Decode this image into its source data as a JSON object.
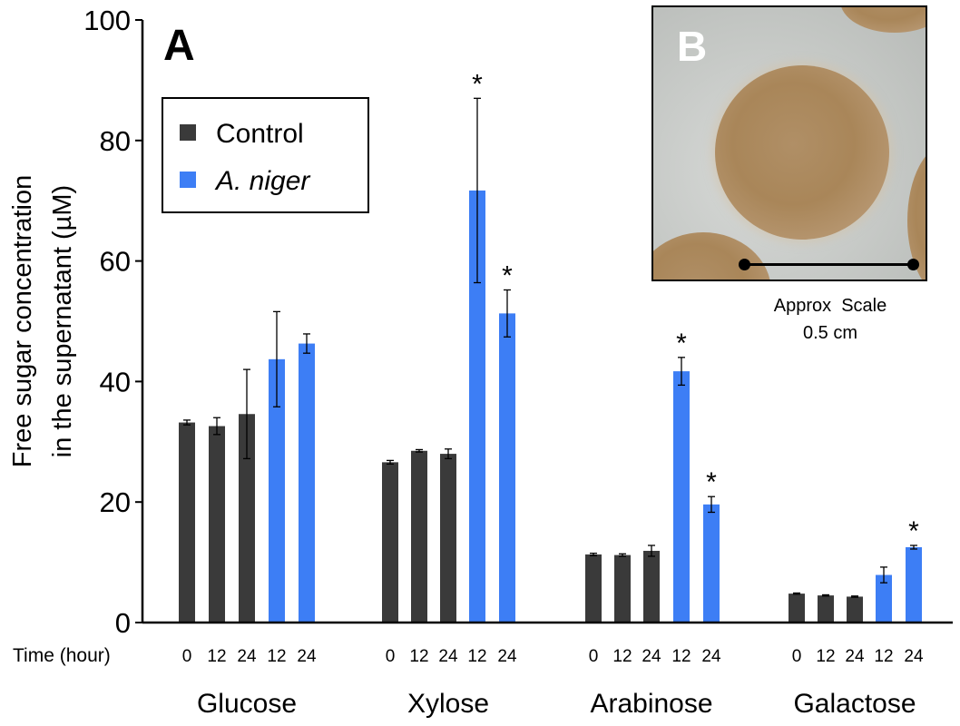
{
  "panel_a_label": "A",
  "panel_b_label": "B",
  "panel_b_scale": {
    "label": "Approx  Scale",
    "value": "0.5 cm"
  },
  "colors": {
    "control": "#3a3a3a",
    "a_niger": "#3d7ef5"
  },
  "chart_data": {
    "type": "bar",
    "title": "",
    "ylabel_line1": "Free sugar concentration",
    "ylabel_line2": "in the supernatant (µM)",
    "ylim": [
      0,
      100
    ],
    "yticks": [
      0,
      20,
      40,
      60,
      80,
      100
    ],
    "xaxis_prefix": "Time (hour)",
    "legend": {
      "position": "top-left",
      "entries": [
        {
          "name": "Control",
          "color": "#3a3a3a",
          "italic": false
        },
        {
          "name": "A. niger",
          "color": "#3d7ef5",
          "italic": true
        }
      ]
    },
    "groups": [
      {
        "name": "Glucose",
        "bars": [
          {
            "time": "0",
            "series": "Control",
            "value": 33.2,
            "error": 0.4,
            "sig": false
          },
          {
            "time": "12",
            "series": "Control",
            "value": 32.6,
            "error": 1.4,
            "sig": false
          },
          {
            "time": "24",
            "series": "Control",
            "value": 34.6,
            "error": 7.4,
            "sig": false
          },
          {
            "time": "12",
            "series": "A. niger",
            "value": 43.7,
            "error": 7.9,
            "sig": false
          },
          {
            "time": "24",
            "series": "A. niger",
            "value": 46.3,
            "error": 1.6,
            "sig": false
          }
        ]
      },
      {
        "name": "Xylose",
        "bars": [
          {
            "time": "0",
            "series": "Control",
            "value": 26.6,
            "error": 0.3,
            "sig": false
          },
          {
            "time": "12",
            "series": "Control",
            "value": 28.5,
            "error": 0.2,
            "sig": false
          },
          {
            "time": "24",
            "series": "Control",
            "value": 28.0,
            "error": 0.8,
            "sig": false
          },
          {
            "time": "12",
            "series": "A. niger",
            "value": 71.7,
            "error": 15.3,
            "sig": true
          },
          {
            "time": "24",
            "series": "A. niger",
            "value": 51.3,
            "error": 3.9,
            "sig": true
          }
        ]
      },
      {
        "name": "Arabinose",
        "bars": [
          {
            "time": "0",
            "series": "Control",
            "value": 11.3,
            "error": 0.2,
            "sig": false
          },
          {
            "time": "12",
            "series": "Control",
            "value": 11.2,
            "error": 0.2,
            "sig": false
          },
          {
            "time": "24",
            "series": "Control",
            "value": 11.9,
            "error": 0.9,
            "sig": false
          },
          {
            "time": "12",
            "series": "A. niger",
            "value": 41.7,
            "error": 2.3,
            "sig": true
          },
          {
            "time": "24",
            "series": "A. niger",
            "value": 19.6,
            "error": 1.3,
            "sig": true
          }
        ]
      },
      {
        "name": "Galactose",
        "bars": [
          {
            "time": "0",
            "series": "Control",
            "value": 4.8,
            "error": 0.1,
            "sig": false
          },
          {
            "time": "12",
            "series": "Control",
            "value": 4.5,
            "error": 0.1,
            "sig": false
          },
          {
            "time": "24",
            "series": "Control",
            "value": 4.3,
            "error": 0.1,
            "sig": false
          },
          {
            "time": "12",
            "series": "A. niger",
            "value": 7.9,
            "error": 1.3,
            "sig": false
          },
          {
            "time": "24",
            "series": "A. niger",
            "value": 12.5,
            "error": 0.3,
            "sig": true
          }
        ]
      }
    ],
    "significance_marker": "*"
  }
}
